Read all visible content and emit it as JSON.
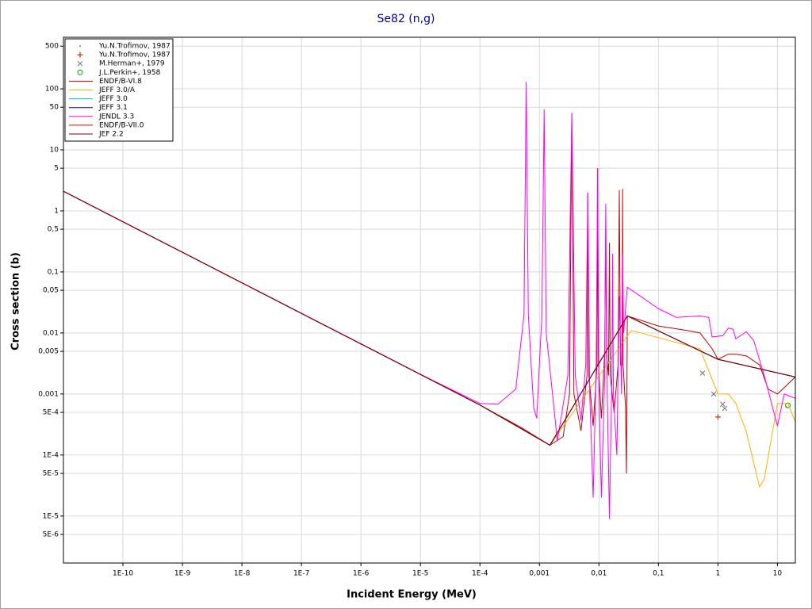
{
  "chart_data": {
    "type": "line",
    "title": "Se82 (n,g)",
    "x_label": "Incident Energy (MeV)",
    "y_label": "Cross section (b)",
    "log_x": true,
    "log_y": true,
    "grid": true,
    "legend": "top-left",
    "xlim": [
      1e-11,
      20
    ],
    "ylim": [
      1.7e-06,
      700
    ],
    "xticks": [
      {
        "value": 1e-10,
        "label": "1E-10"
      },
      {
        "value": 1e-09,
        "label": "1E-9"
      },
      {
        "value": 1e-08,
        "label": "1E-8"
      },
      {
        "value": 1e-07,
        "label": "1E-7"
      },
      {
        "value": 1e-06,
        "label": "1E-6"
      },
      {
        "value": 1e-05,
        "label": "1E-5"
      },
      {
        "value": 0.0001,
        "label": "1E-4"
      },
      {
        "value": 0.001,
        "label": "0,001"
      },
      {
        "value": 0.01,
        "label": "0,01"
      },
      {
        "value": 0.1,
        "label": "0,1"
      },
      1,
      10
    ],
    "yticks": [
      500,
      100,
      50,
      10,
      5,
      1,
      {
        "value": 0.5,
        "label": "0,5"
      },
      {
        "value": 0.1,
        "label": "0,1"
      },
      {
        "value": 0.05,
        "label": "0,05"
      },
      {
        "value": 0.01,
        "label": "0,01"
      },
      {
        "value": 0.005,
        "label": "0,005"
      },
      {
        "value": 0.001,
        "label": "0,001"
      },
      {
        "value": 0.0005,
        "label": "5E-4"
      },
      {
        "value": 0.0001,
        "label": "1E-4"
      },
      {
        "value": 5e-05,
        "label": "5E-5"
      },
      {
        "value": 1e-05,
        "label": "1E-5"
      },
      {
        "value": 5e-06,
        "label": "5E-6"
      }
    ],
    "series": [
      {
        "name": "Yu.N.Trofimov, 1987",
        "kind": "scatter",
        "marker": "dot",
        "color": "#808080",
        "x": [
          14
        ],
        "values": [
          0.00062
        ]
      },
      {
        "name": "Yu.N.Trofimov, 1987",
        "kind": "scatter",
        "marker": "plus",
        "color": "#c04000",
        "x": [
          1.0
        ],
        "values": [
          0.00042
        ]
      },
      {
        "name": "M.Herman+, 1979",
        "kind": "scatter",
        "marker": "cross",
        "color": "#707070",
        "x": [
          0.55,
          0.85,
          1.2,
          1.3
        ],
        "values": [
          0.0022,
          0.001,
          0.00068,
          0.00058
        ]
      },
      {
        "name": "J.L.Perkin+, 1958",
        "kind": "scatter",
        "marker": "circle",
        "color": "#00a000",
        "x": [
          15
        ],
        "values": [
          0.00065
        ]
      },
      {
        "name": "ENDF/B-VI.8",
        "kind": "line",
        "color": "#c00000",
        "x": [
          1e-11,
          1e-05,
          0.0001,
          0.0005,
          0.0015,
          0.0025,
          0.0032,
          0.0035,
          0.0038,
          0.005,
          0.0063,
          0.0065,
          0.0068,
          0.008,
          0.0093,
          0.0095,
          0.0098,
          0.011,
          0.0125,
          0.013,
          0.0135,
          0.0145,
          0.015,
          0.0155,
          0.018,
          0.021,
          0.022,
          0.023,
          0.0245,
          0.025,
          0.0255,
          0.028,
          0.029,
          0.03,
          0.1,
          0.3,
          0.5,
          0.8,
          1,
          1.5,
          2,
          3,
          5,
          7,
          10,
          20
        ],
        "values": [
          2.1,
          0.0021,
          0.00066,
          0.00028,
          0.000145,
          0.0002,
          0.001,
          40,
          0.001,
          0.00025,
          0.002,
          2,
          0.002,
          0.0003,
          0.003,
          5,
          0.003,
          0.0004,
          0.005,
          0.5,
          0.004,
          0.002,
          0.3,
          0.002,
          0.0005,
          0.003,
          2.2,
          0.003,
          0.003,
          2.3,
          0.003,
          0.0006,
          5e-05,
          0.019,
          0.013,
          0.011,
          0.01,
          0.0055,
          0.0037,
          0.0045,
          0.0045,
          0.0042,
          0.003,
          0.0012,
          0.001,
          0.0019
        ]
      },
      {
        "name": "JEFF 3.0/A",
        "kind": "line",
        "color": "#ffb000",
        "x": [
          1e-11,
          0.0001,
          0.0015,
          0.035,
          0.5,
          1,
          1.5,
          2,
          3,
          5,
          6,
          10,
          15,
          20
        ],
        "values": [
          2.1,
          0.00066,
          0.000145,
          0.011,
          0.0055,
          0.001,
          0.001,
          0.0007,
          0.00024,
          3e-05,
          4e-05,
          0.0007,
          0.0007,
          0.00035
        ]
      },
      {
        "name": "JEFF 3.0",
        "kind": "line",
        "color": "#00c0c0",
        "x": [
          1e-11,
          0.0001,
          0.0015,
          0.03,
          1,
          20
        ],
        "values": [
          2.1,
          0.00066,
          0.000145,
          0.019,
          0.0037,
          0.0019
        ]
      },
      {
        "name": "JEFF 3.1",
        "kind": "line",
        "color": "#0000c0",
        "x": [
          1e-11,
          0.0001,
          0.0015,
          0.03,
          1,
          20
        ],
        "values": [
          2.1,
          0.00066,
          0.000145,
          0.019,
          0.0037,
          0.0019
        ]
      },
      {
        "name": "JENDL 3.3",
        "kind": "line",
        "color": "#ff00ff",
        "x": [
          1e-11,
          1e-05,
          0.0001,
          0.0002,
          0.0004,
          0.00055,
          0.0006,
          0.00065,
          0.0008,
          0.0009,
          0.0011,
          0.0012,
          0.0013,
          0.002,
          0.003,
          0.0035,
          0.004,
          0.005,
          0.006,
          0.0065,
          0.007,
          0.008,
          0.009,
          0.0095,
          0.01,
          0.011,
          0.0125,
          0.013,
          0.0138,
          0.015,
          0.0165,
          0.017,
          0.0175,
          0.02,
          0.022,
          0.024,
          0.025,
          0.026,
          0.03,
          0.05,
          0.1,
          0.2,
          0.5,
          0.7,
          0.8,
          1.2,
          1.5,
          1.8,
          2,
          3,
          4,
          6,
          10,
          13,
          20
        ],
        "values": [
          2.1,
          0.0021,
          0.0007,
          0.00068,
          0.0012,
          0.02,
          130,
          0.02,
          0.0006,
          0.0004,
          0.02,
          46,
          0.01,
          0.00017,
          0.002,
          40,
          0.002,
          0.00037,
          0.003,
          2,
          0.001,
          2e-05,
          0.003,
          5,
          0.001,
          2e-05,
          0.002,
          1.3,
          0.001,
          9e-06,
          0.002,
          0.2,
          0.001,
          0.0001,
          0.04,
          0.001,
          0.2,
          0.01,
          0.056,
          0.04,
          0.025,
          0.018,
          0.019,
          0.018,
          0.0086,
          0.009,
          0.012,
          0.0115,
          0.008,
          0.0105,
          0.0075,
          0.002,
          0.0003,
          0.001,
          0.00085
        ]
      },
      {
        "name": "ENDF/B-VII.0",
        "kind": "line",
        "color": "#e00000",
        "x": [
          1e-11,
          0.0001,
          0.0015,
          0.03,
          1,
          20
        ],
        "values": [
          2.1,
          0.00066,
          0.000145,
          0.019,
          0.0037,
          0.0019
        ]
      },
      {
        "name": "JEF 2.2",
        "kind": "line",
        "color": "#800000",
        "x": [
          1e-11,
          0.0001,
          0.0015,
          0.03,
          1,
          20
        ],
        "values": [
          2.1,
          0.00066,
          0.000145,
          0.019,
          0.0037,
          0.0019
        ]
      }
    ]
  }
}
